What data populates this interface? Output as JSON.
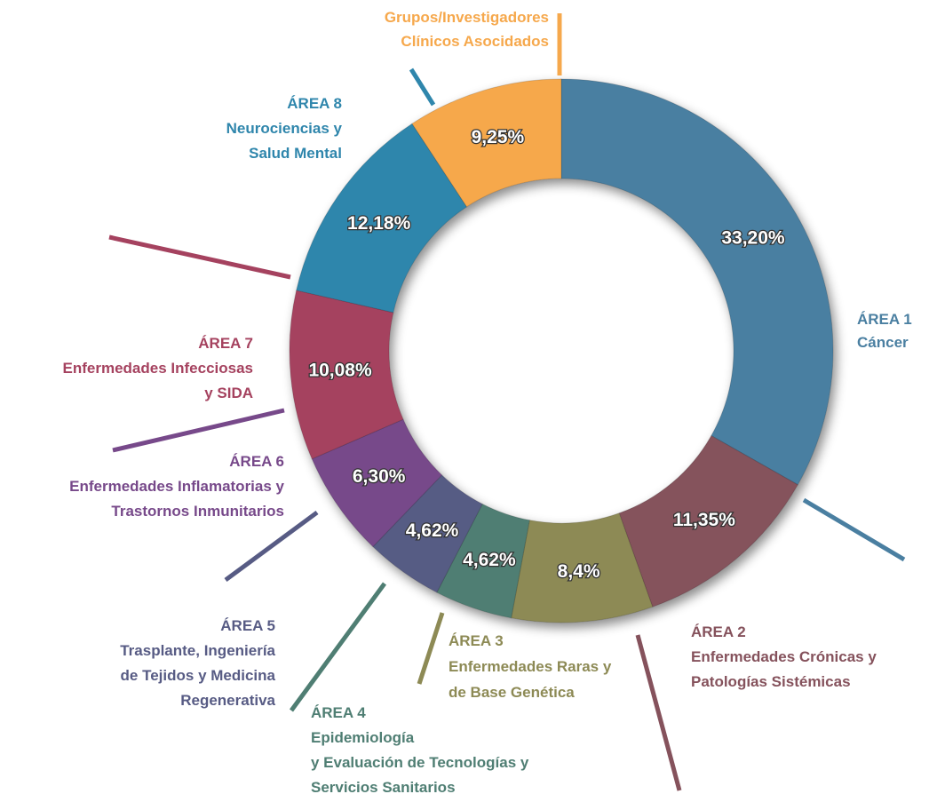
{
  "chart_data": {
    "type": "donut",
    "categories": [
      [
        "ÁREA 1",
        "Cáncer"
      ],
      [
        "ÁREA 2",
        "Enfermedades Crónicas y",
        "Patologías Sistémicas"
      ],
      [
        "ÁREA 3",
        "Enfermedades Raras y",
        "de Base Genética"
      ],
      [
        "ÁREA 4",
        "Epidemiología",
        "y Evaluación de Tecnologías y",
        "Servicios Sanitarios"
      ],
      [
        "ÁREA 5",
        "Trasplante, Ingeniería",
        "de Tejidos y Medicina",
        "Regenerativa"
      ],
      [
        "ÁREA 6",
        "Enfermedades Inflamatorias y",
        "Trastornos Inmunitarios"
      ],
      [
        "ÁREA 7",
        "Enfermedades Infecciosas",
        "y SIDA"
      ],
      [
        "ÁREA 8",
        "Neurociencias y",
        "Salud Mental"
      ],
      [
        "Grupos/Investigadores",
        "Clínicos Asocidados"
      ]
    ],
    "values": [
      33.2,
      11.35,
      8.4,
      4.62,
      4.62,
      6.3,
      10.08,
      12.18,
      9.25
    ],
    "value_labels": [
      "33,20%",
      "11,35%",
      "8,4%",
      "4,62%",
      "4,62%",
      "6,30%",
      "10,08%",
      "12,18%",
      "9,25%"
    ],
    "colors": [
      "#4a7fa1",
      "#85525c",
      "#8d8a55",
      "#4f7e73",
      "#575b84",
      "#77498a",
      "#a5425f",
      "#2f86ac",
      "#f6a84c"
    ]
  }
}
